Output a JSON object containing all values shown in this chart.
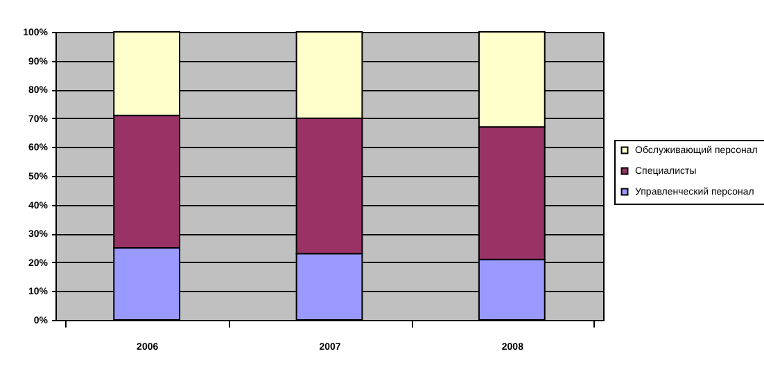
{
  "chart_data": {
    "type": "bar",
    "stacked": true,
    "categories": [
      "2006",
      "2007",
      "2008"
    ],
    "series": [
      {
        "name": "Управленческий персонал",
        "color": "#9999ff",
        "values": [
          25,
          23,
          21
        ]
      },
      {
        "name": "Специалисты",
        "color": "#993366",
        "values": [
          46,
          47,
          46
        ]
      },
      {
        "name": "Обслуживающий персонал",
        "color": "#ffffcc",
        "values": [
          29,
          30,
          33
        ]
      }
    ],
    "ylim": [
      0,
      100
    ],
    "yticks": [
      {
        "value": 0,
        "label": "0%"
      },
      {
        "value": 10,
        "label": "10%"
      },
      {
        "value": 20,
        "label": "20%"
      },
      {
        "value": 30,
        "label": "30%"
      },
      {
        "value": 40,
        "label": "40%"
      },
      {
        "value": 50,
        "label": "50%"
      },
      {
        "value": 60,
        "label": "60%"
      },
      {
        "value": 70,
        "label": "70%"
      },
      {
        "value": 80,
        "label": "80%"
      },
      {
        "value": 90,
        "label": "90%"
      },
      {
        "value": 100,
        "label": "100%"
      }
    ],
    "grid": "y",
    "legend": "right"
  }
}
